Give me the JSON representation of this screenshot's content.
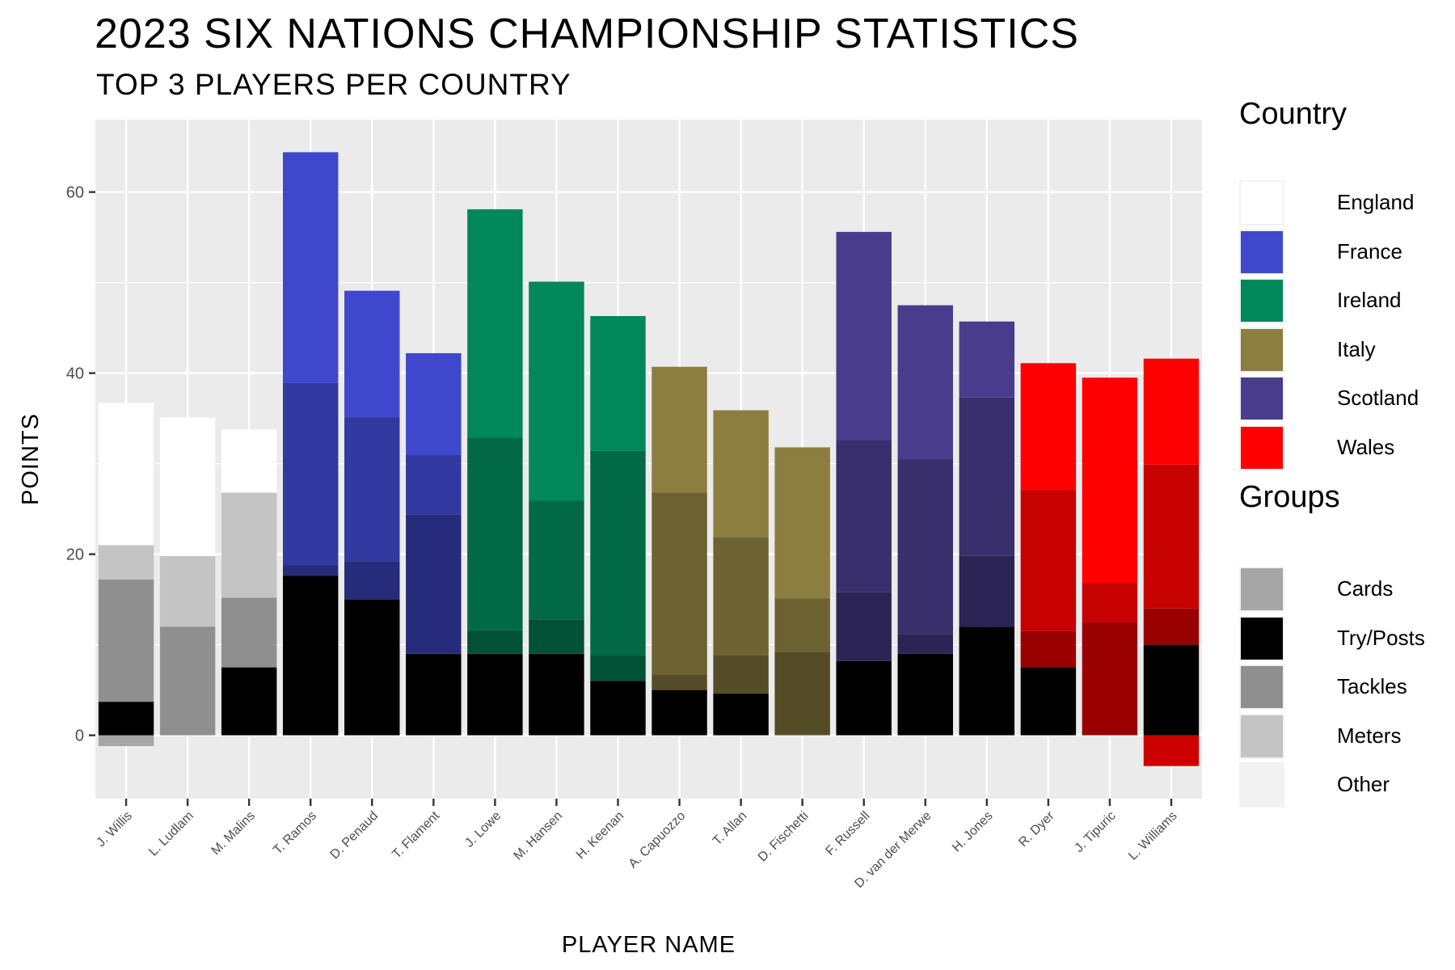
{
  "title": "2023 SIX NATIONS CHAMPIONSHIP STATISTICS",
  "subtitle": "TOP 3 PLAYERS PER COUNTRY",
  "chart_data": {
    "type": "bar",
    "stacked": true,
    "title": "2023 SIX NATIONS CHAMPIONSHIP STATISTICS",
    "subtitle": "TOP 3 PLAYERS PER COUNTRY",
    "xlabel": "PLAYER NAME",
    "ylabel": "POINTS",
    "ylim": [
      -7,
      68
    ],
    "yticks": [
      0,
      20,
      40,
      60
    ],
    "grid": true,
    "legend_position": "right",
    "categories": [
      "J. Willis",
      "L. Ludlam",
      "M. Malins",
      "T. Ramos",
      "D. Penaud",
      "T. Flament",
      "J. Lowe",
      "M. Hansen",
      "H. Keenan",
      "A. Capuozzo",
      "T. Allan",
      "D. Fischetti",
      "F. Russell",
      "D. van der Merwe",
      "H. Jones",
      "R. Dyer",
      "J. Tipuric",
      "L. Williams"
    ],
    "player_country": [
      "England",
      "England",
      "England",
      "France",
      "France",
      "France",
      "Ireland",
      "Ireland",
      "Ireland",
      "Italy",
      "Italy",
      "Italy",
      "Scotland",
      "Scotland",
      "Scotland",
      "Wales",
      "Wales",
      "Wales"
    ],
    "country_colors": {
      "England": "#ffffff",
      "France": "#3f48cc",
      "Ireland": "#00875a",
      "Italy": "#8c7e3f",
      "Scotland": "#4a3c8c",
      "Wales": "#ff0000"
    },
    "group_colors": {
      "Cards": "#a6a6a6",
      "Try/Posts": "#000000",
      "Tackles": "#8f8f8f",
      "Meters": "#c4c4c4",
      "Other": "#f2f2f2"
    },
    "segments": [
      [
        {
          "group": "Cards",
          "from": -1.2,
          "to": 0
        },
        {
          "group": "Try/Posts",
          "from": 0,
          "to": 3.7
        },
        {
          "group": "Tackles",
          "from": 3.7,
          "to": 17.2
        },
        {
          "group": "Meters",
          "from": 17.2,
          "to": 21.0
        },
        {
          "group": "Other",
          "from": 21.0,
          "to": 36.7
        }
      ],
      [
        {
          "group": "Try/Posts",
          "from": 0,
          "to": 0
        },
        {
          "group": "Tackles",
          "from": 0,
          "to": 12.0
        },
        {
          "group": "Meters",
          "from": 12.0,
          "to": 19.8
        },
        {
          "group": "Other",
          "from": 19.8,
          "to": 35.1
        }
      ],
      [
        {
          "group": "Try/Posts",
          "from": 0,
          "to": 7.5
        },
        {
          "group": "Tackles",
          "from": 7.5,
          "to": 15.2
        },
        {
          "group": "Meters",
          "from": 15.2,
          "to": 26.8
        },
        {
          "group": "Other",
          "from": 26.8,
          "to": 33.8
        }
      ],
      [
        {
          "group": "Try/Posts",
          "from": 0,
          "to": 17.6
        },
        {
          "group": "Tackles",
          "from": 17.6,
          "to": 18.8
        },
        {
          "group": "Meters",
          "from": 18.8,
          "to": 38.9
        },
        {
          "group": "Other",
          "from": 38.9,
          "to": 64.4
        }
      ],
      [
        {
          "group": "Try/Posts",
          "from": 0,
          "to": 15.0
        },
        {
          "group": "Tackles",
          "from": 15.0,
          "to": 19.2
        },
        {
          "group": "Meters",
          "from": 19.2,
          "to": 35.1
        },
        {
          "group": "Other",
          "from": 35.1,
          "to": 49.1
        }
      ],
      [
        {
          "group": "Try/Posts",
          "from": 0,
          "to": 9.0
        },
        {
          "group": "Tackles",
          "from": 9.0,
          "to": 24.4
        },
        {
          "group": "Meters",
          "from": 24.4,
          "to": 31.0
        },
        {
          "group": "Other",
          "from": 31.0,
          "to": 42.2
        }
      ],
      [
        {
          "group": "Try/Posts",
          "from": 0,
          "to": 9.0
        },
        {
          "group": "Tackles",
          "from": 9.0,
          "to": 11.6
        },
        {
          "group": "Meters",
          "from": 11.6,
          "to": 32.9
        },
        {
          "group": "Other",
          "from": 32.9,
          "to": 58.1
        }
      ],
      [
        {
          "group": "Try/Posts",
          "from": 0,
          "to": 9.0
        },
        {
          "group": "Tackles",
          "from": 9.0,
          "to": 12.8
        },
        {
          "group": "Meters",
          "from": 12.8,
          "to": 25.9
        },
        {
          "group": "Other",
          "from": 25.9,
          "to": 50.1
        }
      ],
      [
        {
          "group": "Try/Posts",
          "from": 0,
          "to": 6.0
        },
        {
          "group": "Tackles",
          "from": 6.0,
          "to": 8.8
        },
        {
          "group": "Meters",
          "from": 8.8,
          "to": 31.4
        },
        {
          "group": "Other",
          "from": 31.4,
          "to": 46.3
        }
      ],
      [
        {
          "group": "Try/Posts",
          "from": 0,
          "to": 5.0
        },
        {
          "group": "Tackles",
          "from": 5.0,
          "to": 6.7
        },
        {
          "group": "Meters",
          "from": 6.7,
          "to": 26.8
        },
        {
          "group": "Other",
          "from": 26.8,
          "to": 40.7
        }
      ],
      [
        {
          "group": "Try/Posts",
          "from": 0,
          "to": 4.6
        },
        {
          "group": "Tackles",
          "from": 4.6,
          "to": 8.8
        },
        {
          "group": "Meters",
          "from": 8.8,
          "to": 21.9
        },
        {
          "group": "Other",
          "from": 21.9,
          "to": 35.9
        }
      ],
      [
        {
          "group": "Try/Posts",
          "from": 0,
          "to": 0
        },
        {
          "group": "Tackles",
          "from": 0,
          "to": 9.2
        },
        {
          "group": "Meters",
          "from": 9.2,
          "to": 15.1
        },
        {
          "group": "Other",
          "from": 15.1,
          "to": 31.8
        }
      ],
      [
        {
          "group": "Try/Posts",
          "from": 0,
          "to": 8.2
        },
        {
          "group": "Tackles",
          "from": 8.2,
          "to": 15.8
        },
        {
          "group": "Meters",
          "from": 15.8,
          "to": 32.6
        },
        {
          "group": "Other",
          "from": 32.6,
          "to": 55.6
        }
      ],
      [
        {
          "group": "Try/Posts",
          "from": 0,
          "to": 9.0
        },
        {
          "group": "Tackles",
          "from": 9.0,
          "to": 11.2
        },
        {
          "group": "Meters",
          "from": 11.2,
          "to": 30.5
        },
        {
          "group": "Other",
          "from": 30.5,
          "to": 47.5
        }
      ],
      [
        {
          "group": "Try/Posts",
          "from": 0,
          "to": 12.0
        },
        {
          "group": "Tackles",
          "from": 12.0,
          "to": 19.8
        },
        {
          "group": "Meters",
          "from": 19.8,
          "to": 37.3
        },
        {
          "group": "Other",
          "from": 37.3,
          "to": 45.7
        }
      ],
      [
        {
          "group": "Try/Posts",
          "from": 0,
          "to": 7.5
        },
        {
          "group": "Tackles",
          "from": 7.5,
          "to": 11.5
        },
        {
          "group": "Meters",
          "from": 11.5,
          "to": 27.1
        },
        {
          "group": "Other",
          "from": 27.1,
          "to": 41.1
        }
      ],
      [
        {
          "group": "Try/Posts",
          "from": 0,
          "to": 0
        },
        {
          "group": "Tackles",
          "from": 0,
          "to": 12.5
        },
        {
          "group": "Meters",
          "from": 12.5,
          "to": 16.8
        },
        {
          "group": "Other",
          "from": 16.8,
          "to": 39.5
        }
      ],
      [
        {
          "group": "Cards",
          "from": -3.4,
          "to": 0
        },
        {
          "group": "Try/Posts",
          "from": 0,
          "to": 10.0
        },
        {
          "group": "Tackles",
          "from": 10.0,
          "to": 14.0
        },
        {
          "group": "Meters",
          "from": 14.0,
          "to": 29.9
        },
        {
          "group": "Other",
          "from": 29.9,
          "to": 41.6
        }
      ]
    ]
  },
  "legend": {
    "country_title": "Country",
    "countries": [
      "England",
      "France",
      "Ireland",
      "Italy",
      "Scotland",
      "Wales"
    ],
    "groups_title": "Groups",
    "groups": [
      "Cards",
      "Try/Posts",
      "Tackles",
      "Meters",
      "Other"
    ]
  }
}
